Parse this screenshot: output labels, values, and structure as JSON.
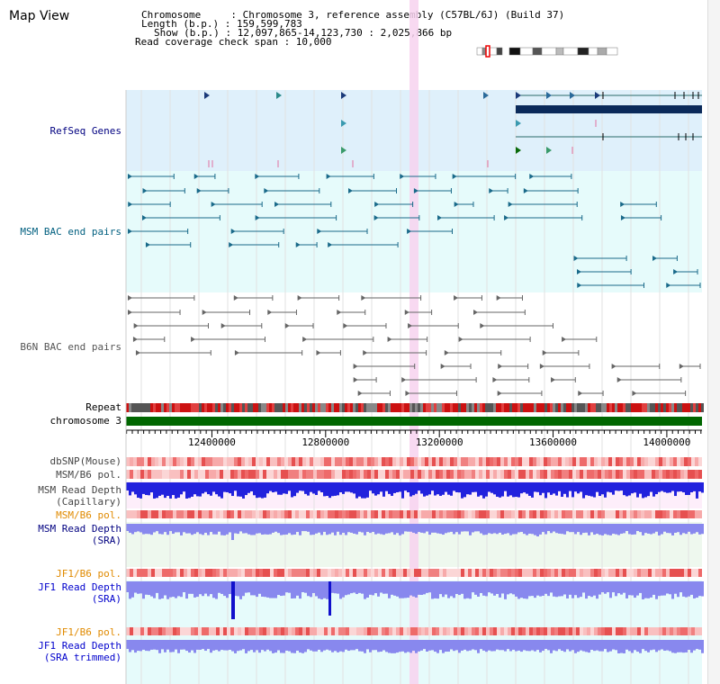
{
  "title": "Map View",
  "info": {
    "chrom_line": "Chromosome     : Chromosome 3, reference assembly (C57BL/6J) (Build 37)",
    "length_line": "Length (b.p.) : 159,599,783",
    "show_line": "Show (b.p.) : 12,097,865-14,123,730 : 2,025,866 bp",
    "coverage_line": "Read coverage check span : 10,000"
  },
  "tracks": {
    "refseq": {
      "label": "RefSeq Genes",
      "color": "#000080"
    },
    "msm_bac": {
      "label": "MSM BAC end pairs",
      "color": "#005f7f"
    },
    "b6n_bac": {
      "label": "B6N BAC end pairs",
      "color": "#555555"
    },
    "repeat": {
      "label": "Repeat",
      "color": "#000000"
    },
    "chromosome": {
      "label": "chromosome 3",
      "color": "#000000"
    },
    "dbsnp": {
      "label": "dbSNP(Mouse)",
      "color": "#444444"
    },
    "msm_b6_pol_1": {
      "label": "MSM/B6 pol.",
      "color": "#444444"
    },
    "msm_depth_cap": {
      "label": "MSM Read Depth\n(Capillary)",
      "color": "#444444"
    },
    "msm_b6_pol_2": {
      "label": "MSM/B6 pol.",
      "color": "#e08a00"
    },
    "msm_depth_sra": {
      "label": "MSM Read Depth\n(SRA)",
      "color": "#000080"
    },
    "jf1_b6_pol_1": {
      "label": "JF1/B6 pol.",
      "color": "#e08a00"
    },
    "jf1_depth_sra": {
      "label": "JF1 Read Depth\n(SRA)",
      "color": "#0000cc"
    },
    "jf1_b6_pol_2": {
      "label": "JF1/B6 pol.",
      "color": "#e08a00"
    },
    "jf1_depth_trim": {
      "label": "JF1 Read Depth\n(SRA trimmed)",
      "color": "#0000cc"
    }
  },
  "axis": {
    "ticks": [
      "12400000",
      "12800000",
      "13200000",
      "13600000",
      "14000000"
    ],
    "tick_values": [
      12400000,
      12800000,
      13200000,
      13600000,
      14000000
    ],
    "range": [
      12097865,
      14123730
    ]
  },
  "colors": {
    "refseq_bg": "#dff0fb",
    "msm_bg": "#e6fbfb",
    "chromosome_bar": "#006600",
    "highlight": "#f7d2ee",
    "depth_blue": "#2222dd",
    "depth_light": "#8888ee"
  }
}
